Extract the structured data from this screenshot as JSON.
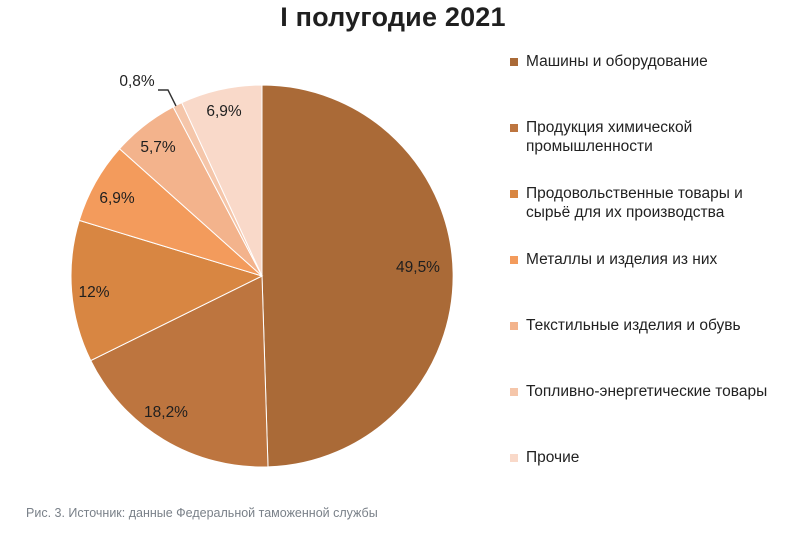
{
  "chart_data": {
    "type": "pie",
    "title": "I полугодие 2021",
    "slices": [
      {
        "label": "Машины и оборудование",
        "value": 49.5,
        "value_label": "49,5%",
        "color": "#aa6a37"
      },
      {
        "label": "Продукция химической промышленности",
        "value": 18.2,
        "value_label": "18,2%",
        "color": "#bd753f"
      },
      {
        "label": "Продовольственные товары и сырьё для их производства",
        "value": 12,
        "value_label": "12%",
        "color": "#d88642"
      },
      {
        "label": "Металлы и изделия из них",
        "value": 6.9,
        "value_label": "6,9%",
        "color": "#f39b5c"
      },
      {
        "label": "Текстильные изделия и обувь",
        "value": 5.7,
        "value_label": "5,7%",
        "color": "#f3b38c"
      },
      {
        "label": "Топливно-энергетические товары",
        "value": 0.8,
        "value_label": "0,8%",
        "color": "#f5c6aa"
      },
      {
        "label": "Прочие",
        "value": 6.9,
        "value_label": "6,9%",
        "color": "#f9d9c9"
      }
    ],
    "legend_position": "right"
  },
  "caption": "Рис. 3. Источник: данные Федеральной таможенной службы"
}
